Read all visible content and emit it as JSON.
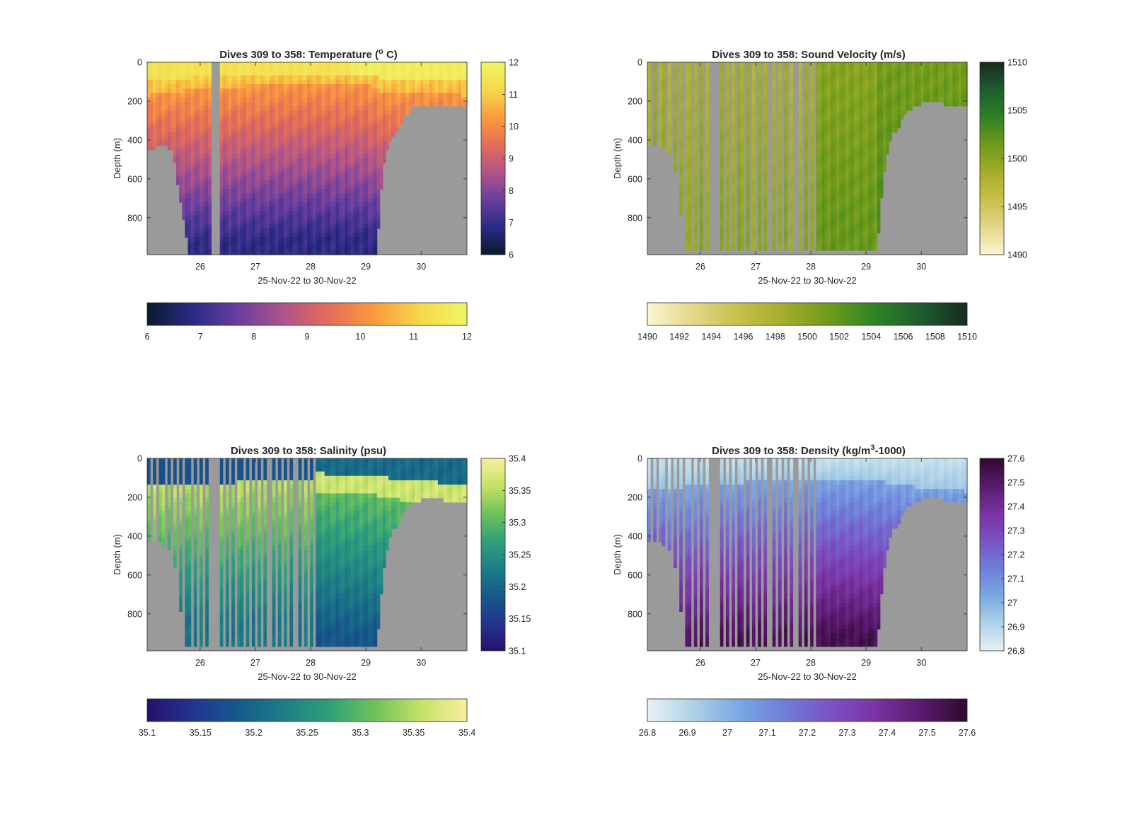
{
  "colors": {
    "background": "#ffffff",
    "seafloor": "#9a9a9a",
    "axis": "#262626"
  },
  "chart_data": [
    {
      "type": "heatmap",
      "title_main": "Dives 309 to 358: Temperature (",
      "title_sup": "o",
      "title_end": " C)",
      "xlabel": "25-Nov-22 to 30-Nov-22",
      "ylabel": "Depth (m)",
      "x_ticks": [
        "26",
        "27",
        "28",
        "29",
        "30"
      ],
      "x_tick_values": [
        26,
        27,
        28,
        29,
        30
      ],
      "xlim": [
        25.04,
        30.83
      ],
      "y_ticks": [
        "0",
        "200",
        "400",
        "600",
        "800"
      ],
      "y_tick_values": [
        0,
        200,
        400,
        600,
        800
      ],
      "ylim": [
        0,
        990
      ],
      "y_reversed": true,
      "colorbar_ticks": [
        "6",
        "7",
        "8",
        "9",
        "10",
        "11",
        "12"
      ],
      "colorbar_tick_values": [
        6,
        7,
        8,
        9,
        10,
        11,
        12
      ],
      "clim": [
        6,
        12
      ],
      "colormap": [
        "#0a1a2e",
        "#2a2a86",
        "#6a3f9e",
        "#b0548a",
        "#e56c57",
        "#fb9c3e",
        "#f6d84a",
        "#eef766"
      ],
      "dive_gap": [
        26.2,
        26.33
      ],
      "profile_stripes": false,
      "max_dive_depth": [
        [
          25.04,
          460
        ],
        [
          25.3,
          420
        ],
        [
          25.5,
          450
        ],
        [
          25.6,
          640
        ],
        [
          25.7,
          810
        ],
        [
          25.8,
          990
        ],
        [
          29.2,
          990
        ],
        [
          29.25,
          730
        ],
        [
          29.32,
          520
        ],
        [
          29.42,
          400
        ],
        [
          29.6,
          340
        ],
        [
          29.7,
          280
        ],
        [
          29.83,
          240
        ],
        [
          30.0,
          215
        ],
        [
          30.3,
          218
        ],
        [
          30.6,
          225
        ],
        [
          30.83,
          230
        ]
      ],
      "mixed_layer_depth": [
        [
          25.04,
          170
        ],
        [
          25.5,
          150
        ],
        [
          26.0,
          140
        ],
        [
          27.0,
          120
        ],
        [
          28.0,
          110
        ],
        [
          29.0,
          110
        ],
        [
          29.3,
          150
        ],
        [
          29.7,
          160
        ],
        [
          30.0,
          155
        ],
        [
          30.5,
          165
        ],
        [
          30.83,
          170
        ]
      ]
    },
    {
      "type": "heatmap",
      "title_main": "Dives 309 to 358: Sound Velocity (m/s)",
      "title_sup": "",
      "title_end": "",
      "xlabel": "25-Nov-22 to 30-Nov-22",
      "ylabel": "Depth (m)",
      "x_ticks": [
        "26",
        "27",
        "28",
        "29",
        "30"
      ],
      "x_tick_values": [
        26,
        27,
        28,
        29,
        30
      ],
      "xlim": [
        25.04,
        30.83
      ],
      "y_ticks": [
        "0",
        "200",
        "400",
        "600",
        "800"
      ],
      "y_tick_values": [
        0,
        200,
        400,
        600,
        800
      ],
      "ylim": [
        0,
        990
      ],
      "y_reversed": true,
      "colorbar_ticks": [
        "1510",
        "1505",
        "1500",
        "1495",
        "1490"
      ],
      "colorbar_tick_values": [
        1510,
        1505,
        1500,
        1495,
        1490
      ],
      "clim": [
        1490,
        1510
      ],
      "colormap": [
        "#fcf6d0",
        "#e4d68a",
        "#c8c04a",
        "#a3ad2a",
        "#6e9a1a",
        "#2f8226",
        "#1e5c2e",
        "#172a20"
      ],
      "colorbar_ticks_horizontal": [
        "1490",
        "1492",
        "1494",
        "1496",
        "1498",
        "1500",
        "1502",
        "1504",
        "1506",
        "1508",
        "1510"
      ],
      "colorbar_tick_values_horizontal": [
        1490,
        1492,
        1494,
        1496,
        1498,
        1500,
        1502,
        1504,
        1506,
        1508,
        1510
      ],
      "dive_gap": [
        26.2,
        26.33
      ],
      "profile_stripes": true,
      "stripes_end": 28.08,
      "max_dive_depth": [
        [
          25.04,
          440
        ],
        [
          25.2,
          420
        ],
        [
          25.4,
          450
        ],
        [
          25.55,
          560
        ],
        [
          25.65,
          790
        ],
        [
          25.75,
          960
        ],
        [
          29.2,
          960
        ],
        [
          29.27,
          720
        ],
        [
          29.35,
          520
        ],
        [
          29.45,
          380
        ],
        [
          29.6,
          330
        ],
        [
          29.7,
          270
        ],
        [
          29.85,
          230
        ],
        [
          30.0,
          210
        ],
        [
          30.3,
          212
        ],
        [
          30.6,
          218
        ],
        [
          30.83,
          222
        ]
      ],
      "mixed_layer_depth": [
        [
          25.04,
          170
        ],
        [
          26.0,
          150
        ],
        [
          27.0,
          130
        ],
        [
          28.0,
          120
        ],
        [
          29.0,
          120
        ],
        [
          29.5,
          150
        ],
        [
          30.0,
          160
        ],
        [
          30.83,
          170
        ]
      ]
    },
    {
      "type": "heatmap",
      "title_main": "Dives 309 to 358: Salinity (psu)",
      "title_sup": "",
      "title_end": "",
      "xlabel": "25-Nov-22 to 30-Nov-22",
      "ylabel": "Depth (m)",
      "x_ticks": [
        "26",
        "27",
        "28",
        "29",
        "30"
      ],
      "x_tick_values": [
        26,
        27,
        28,
        29,
        30
      ],
      "xlim": [
        25.04,
        30.83
      ],
      "y_ticks": [
        "0",
        "200",
        "400",
        "600",
        "800"
      ],
      "y_tick_values": [
        0,
        200,
        400,
        600,
        800
      ],
      "ylim": [
        0,
        990
      ],
      "y_reversed": true,
      "colorbar_ticks": [
        "35.4",
        "35.35",
        "35.3",
        "35.25",
        "35.2",
        "35.15",
        "35.1"
      ],
      "colorbar_tick_values": [
        35.4,
        35.35,
        35.3,
        35.25,
        35.2,
        35.15,
        35.1
      ],
      "clim": [
        35.1,
        35.4
      ],
      "colormap": [
        "#26106e",
        "#23358f",
        "#165a8a",
        "#1d7f86",
        "#2fa07a",
        "#6fc25a",
        "#c4e266",
        "#f7ef9e"
      ],
      "colorbar_ticks_horizontal": [
        "35.1",
        "35.15",
        "35.2",
        "35.25",
        "35.3",
        "35.35",
        "35.4"
      ],
      "colorbar_tick_values_horizontal": [
        35.1,
        35.15,
        35.2,
        35.25,
        35.3,
        35.35,
        35.4
      ],
      "dive_gap": [
        26.2,
        26.33
      ],
      "profile_stripes": true,
      "stripes_end": 28.08,
      "max_dive_depth": [
        [
          25.04,
          440
        ],
        [
          25.2,
          420
        ],
        [
          25.4,
          450
        ],
        [
          25.55,
          560
        ],
        [
          25.65,
          790
        ],
        [
          25.75,
          960
        ],
        [
          29.2,
          960
        ],
        [
          29.27,
          720
        ],
        [
          29.35,
          520
        ],
        [
          29.45,
          380
        ],
        [
          29.6,
          330
        ],
        [
          29.7,
          270
        ],
        [
          29.85,
          230
        ],
        [
          30.0,
          210
        ],
        [
          30.3,
          212
        ],
        [
          30.6,
          218
        ],
        [
          30.83,
          222
        ]
      ],
      "mixed_layer_depth": [
        [
          25.04,
          140
        ],
        [
          26.0,
          130
        ],
        [
          27.0,
          120
        ],
        [
          28.0,
          110
        ],
        [
          29.0,
          120
        ],
        [
          29.5,
          150
        ],
        [
          30.0,
          170
        ],
        [
          30.83,
          190
        ]
      ]
    },
    {
      "type": "heatmap",
      "title_main": "Dives 309 to 358: Density (kg/m",
      "title_sup": "3",
      "title_end": "-1000)",
      "xlabel": "25-Nov-22 to 30-Nov-22",
      "ylabel": "Depth (m)",
      "x_ticks": [
        "26",
        "27",
        "28",
        "29",
        "30"
      ],
      "x_tick_values": [
        26,
        27,
        28,
        29,
        30
      ],
      "xlim": [
        25.04,
        30.83
      ],
      "y_ticks": [
        "0",
        "200",
        "400",
        "600",
        "800"
      ],
      "y_tick_values": [
        0,
        200,
        400,
        600,
        800
      ],
      "ylim": [
        0,
        990
      ],
      "y_reversed": true,
      "colorbar_ticks": [
        "27.6",
        "27.5",
        "27.4",
        "27.3",
        "27.2",
        "27.1",
        "27",
        "26.9",
        "26.8"
      ],
      "colorbar_tick_values": [
        27.6,
        27.5,
        27.4,
        27.3,
        27.2,
        27.1,
        27.0,
        26.9,
        26.8
      ],
      "clim": [
        26.8,
        27.6
      ],
      "colormap": [
        "#e8f2f4",
        "#aed2e6",
        "#7aa8e3",
        "#6f7ed8",
        "#7a52c4",
        "#7a33a2",
        "#5a1a6e",
        "#2e0a2e"
      ],
      "colorbar_ticks_horizontal": [
        "26.8",
        "26.9",
        "27",
        "27.1",
        "27.2",
        "27.3",
        "27.4",
        "27.5",
        "27.6"
      ],
      "colorbar_tick_values_horizontal": [
        26.8,
        26.9,
        27.0,
        27.1,
        27.2,
        27.3,
        27.4,
        27.5,
        27.6
      ],
      "dive_gap": [
        26.2,
        26.33
      ],
      "profile_stripes": true,
      "stripes_end": 28.08,
      "max_dive_depth": [
        [
          25.04,
          440
        ],
        [
          25.2,
          420
        ],
        [
          25.4,
          450
        ],
        [
          25.55,
          560
        ],
        [
          25.65,
          790
        ],
        [
          25.75,
          960
        ],
        [
          29.2,
          960
        ],
        [
          29.27,
          720
        ],
        [
          29.35,
          520
        ],
        [
          29.45,
          380
        ],
        [
          29.6,
          330
        ],
        [
          29.7,
          270
        ],
        [
          29.85,
          230
        ],
        [
          30.0,
          210
        ],
        [
          30.3,
          212
        ],
        [
          30.6,
          218
        ],
        [
          30.83,
          222
        ]
      ],
      "mixed_layer_depth": [
        [
          25.04,
          160
        ],
        [
          26.0,
          140
        ],
        [
          27.0,
          120
        ],
        [
          28.0,
          110
        ],
        [
          29.0,
          110
        ],
        [
          29.5,
          130
        ],
        [
          30.0,
          150
        ],
        [
          30.83,
          170
        ]
      ]
    }
  ]
}
